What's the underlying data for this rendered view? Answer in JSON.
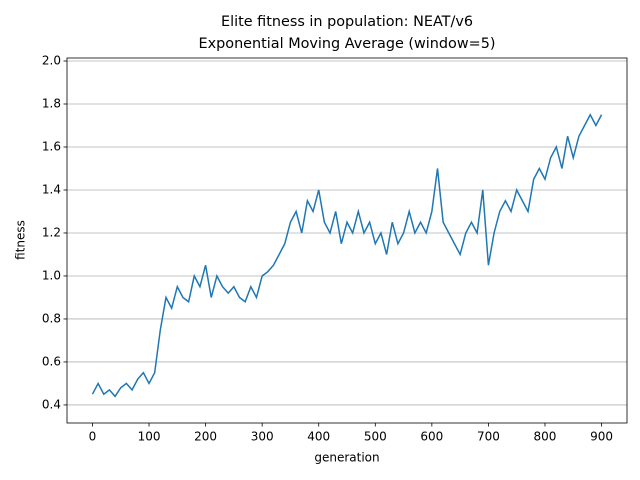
{
  "chart_data": {
    "type": "line",
    "title": "Elite fitness in population: NEAT/v6",
    "subtitle": "Exponential Moving Average (window=5)",
    "x_label": "generation",
    "y_label": "fitness",
    "x": [
      0,
      10,
      20,
      30,
      40,
      50,
      60,
      70,
      80,
      90,
      100,
      110,
      120,
      130,
      140,
      150,
      160,
      170,
      180,
      190,
      200,
      210,
      220,
      230,
      240,
      250,
      260,
      270,
      280,
      290,
      300,
      310,
      320,
      330,
      340,
      350,
      360,
      370,
      380,
      390,
      400,
      410,
      420,
      430,
      440,
      450,
      460,
      470,
      480,
      490,
      500,
      510,
      520,
      530,
      540,
      550,
      560,
      570,
      580,
      590,
      600,
      610,
      620,
      630,
      640,
      650,
      660,
      670,
      680,
      690,
      700,
      710,
      720,
      730,
      740,
      750,
      760,
      770,
      780,
      790,
      800,
      810,
      820,
      830,
      840,
      850,
      860,
      870,
      880,
      890,
      900
    ],
    "series": [
      {
        "name": "fitness",
        "color": "#1f77b4",
        "values": [
          0.45,
          0.5,
          0.45,
          0.47,
          0.44,
          0.48,
          0.5,
          0.47,
          0.52,
          0.55,
          0.5,
          0.55,
          0.75,
          0.9,
          0.85,
          0.95,
          0.9,
          0.88,
          1.0,
          0.95,
          1.05,
          0.9,
          1.0,
          0.95,
          0.92,
          0.95,
          0.9,
          0.88,
          0.95,
          0.9,
          1.0,
          1.02,
          1.05,
          1.1,
          1.15,
          1.25,
          1.3,
          1.2,
          1.35,
          1.3,
          1.4,
          1.25,
          1.2,
          1.3,
          1.15,
          1.25,
          1.2,
          1.3,
          1.2,
          1.25,
          1.15,
          1.2,
          1.1,
          1.25,
          1.15,
          1.2,
          1.3,
          1.2,
          1.25,
          1.2,
          1.3,
          1.5,
          1.25,
          1.2,
          1.15,
          1.1,
          1.2,
          1.25,
          1.2,
          1.4,
          1.05,
          1.2,
          1.3,
          1.35,
          1.3,
          1.4,
          1.35,
          1.3,
          1.45,
          1.5,
          1.45,
          1.55,
          1.6,
          1.5,
          1.65,
          1.55,
          1.65,
          1.7,
          1.75,
          1.7,
          1.75
        ]
      }
    ],
    "xlim": [
      -45,
      945
    ],
    "ylim": [
      0.316,
      2.014
    ],
    "xticks": [
      0,
      100,
      200,
      300,
      400,
      500,
      600,
      700,
      800,
      900
    ],
    "yticks": [
      0.4,
      0.6,
      0.8,
      {
        "value": 1.0,
        "label": "1.0"
      },
      1.2,
      1.4,
      1.6,
      1.8,
      {
        "value": 2.0,
        "label": "2.0"
      }
    ],
    "grid": "y"
  }
}
